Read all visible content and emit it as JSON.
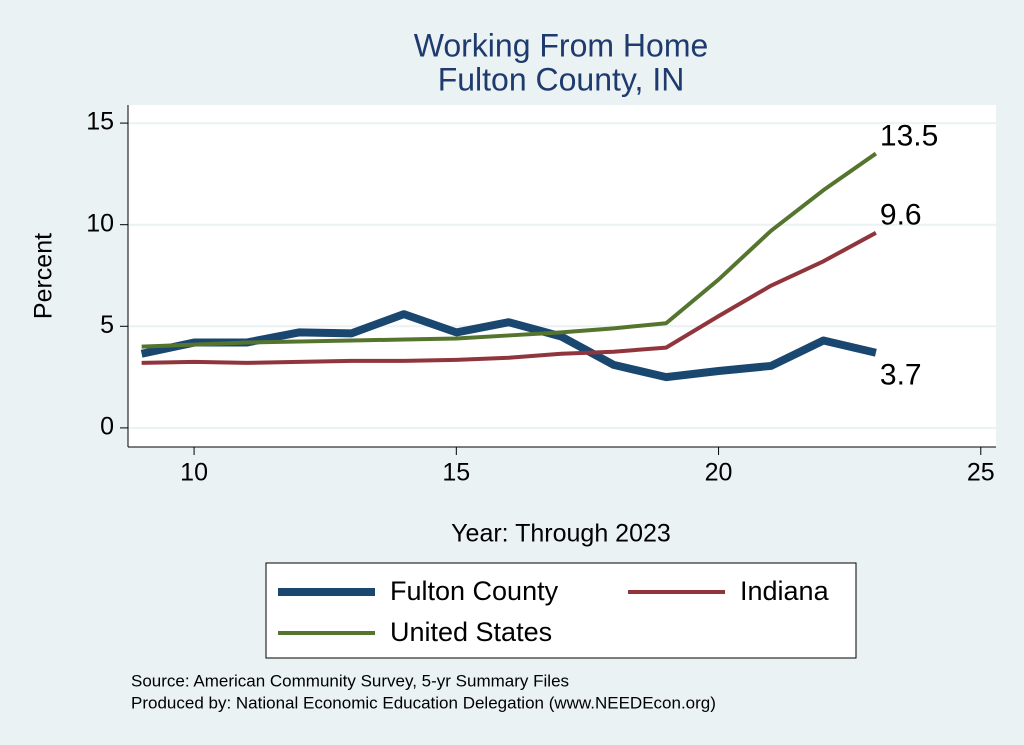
{
  "chart_data": {
    "type": "line",
    "title": [
      "Working From Home",
      "Fulton County, IN"
    ],
    "x_label": "Year: Through 2023",
    "y_label": "Percent",
    "x": [
      9,
      10,
      11,
      12,
      13,
      14,
      15,
      16,
      17,
      18,
      19,
      20,
      21,
      22,
      23
    ],
    "series": [
      {
        "name": "Fulton County",
        "color": "#1a476f",
        "values": [
          3.65,
          4.2,
          4.2,
          4.7,
          4.65,
          5.6,
          4.7,
          5.2,
          4.5,
          3.1,
          2.5,
          2.8,
          3.05,
          4.3,
          3.7
        ]
      },
      {
        "name": "Indiana",
        "color": "#90353b",
        "values": [
          3.2,
          3.25,
          3.2,
          3.25,
          3.3,
          3.3,
          3.35,
          3.45,
          3.65,
          3.75,
          3.95,
          5.5,
          7.0,
          8.2,
          9.6
        ]
      },
      {
        "name": "United States",
        "color": "#55752f",
        "values": [
          4.0,
          4.1,
          4.2,
          4.25,
          4.3,
          4.35,
          4.4,
          4.55,
          4.7,
          4.9,
          5.15,
          7.3,
          9.7,
          11.7,
          13.5
        ]
      }
    ],
    "end_labels": true,
    "xlim": [
      8.74,
      25.29
    ],
    "xticks": [
      10,
      15,
      20,
      25
    ],
    "ylim": [
      -0.94,
      15.89
    ],
    "yticks": [
      0,
      5,
      10,
      15
    ],
    "grid": true,
    "legend_position": "bottom",
    "notes": [
      "Source: American Community Survey, 5-yr Summary Files",
      "Produced by: National Economic Education Delegation (www.NEEDEcon.org)"
    ]
  }
}
